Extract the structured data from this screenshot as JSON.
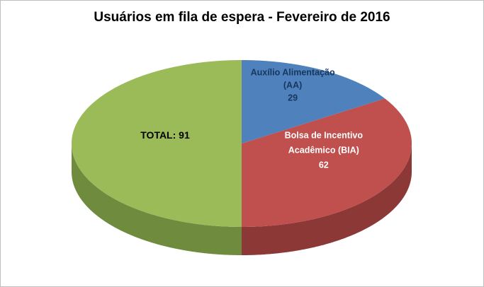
{
  "title": "Usuários em fila de espera - Fevereiro de 2016",
  "chart_data": {
    "type": "pie",
    "style": "3d",
    "title": "Usuários em fila de espera - Fevereiro de 2016",
    "legend": "none",
    "start_angle_deg": 90,
    "direction": "clockwise",
    "background": "#FFFFFF",
    "border_color": "#BFBFBF",
    "slices": [
      {
        "name": "Auxílio Alimentação (AA)",
        "value": 29,
        "color": "#4F81BD",
        "side_color": "#365A86",
        "label_color": "#17375E",
        "label_lines": [
          "Auxílio Alimentação",
          "(AA)",
          "29"
        ]
      },
      {
        "name": "Bolsa de Incentivo Acadêmico (BIA)",
        "value": 62,
        "color": "#C0504D",
        "side_color": "#8C3836",
        "label_color": "#FFFFFF",
        "label_lines": [
          "Bolsa de Incentivo",
          "Acadêmico (BIA)",
          "62"
        ]
      },
      {
        "name": "TOTAL",
        "value": 91,
        "color": "#9BBB59",
        "side_color": "#6F8C3E",
        "label_color": "#000000",
        "label_lines": [
          "TOTAL: 91"
        ]
      }
    ]
  }
}
